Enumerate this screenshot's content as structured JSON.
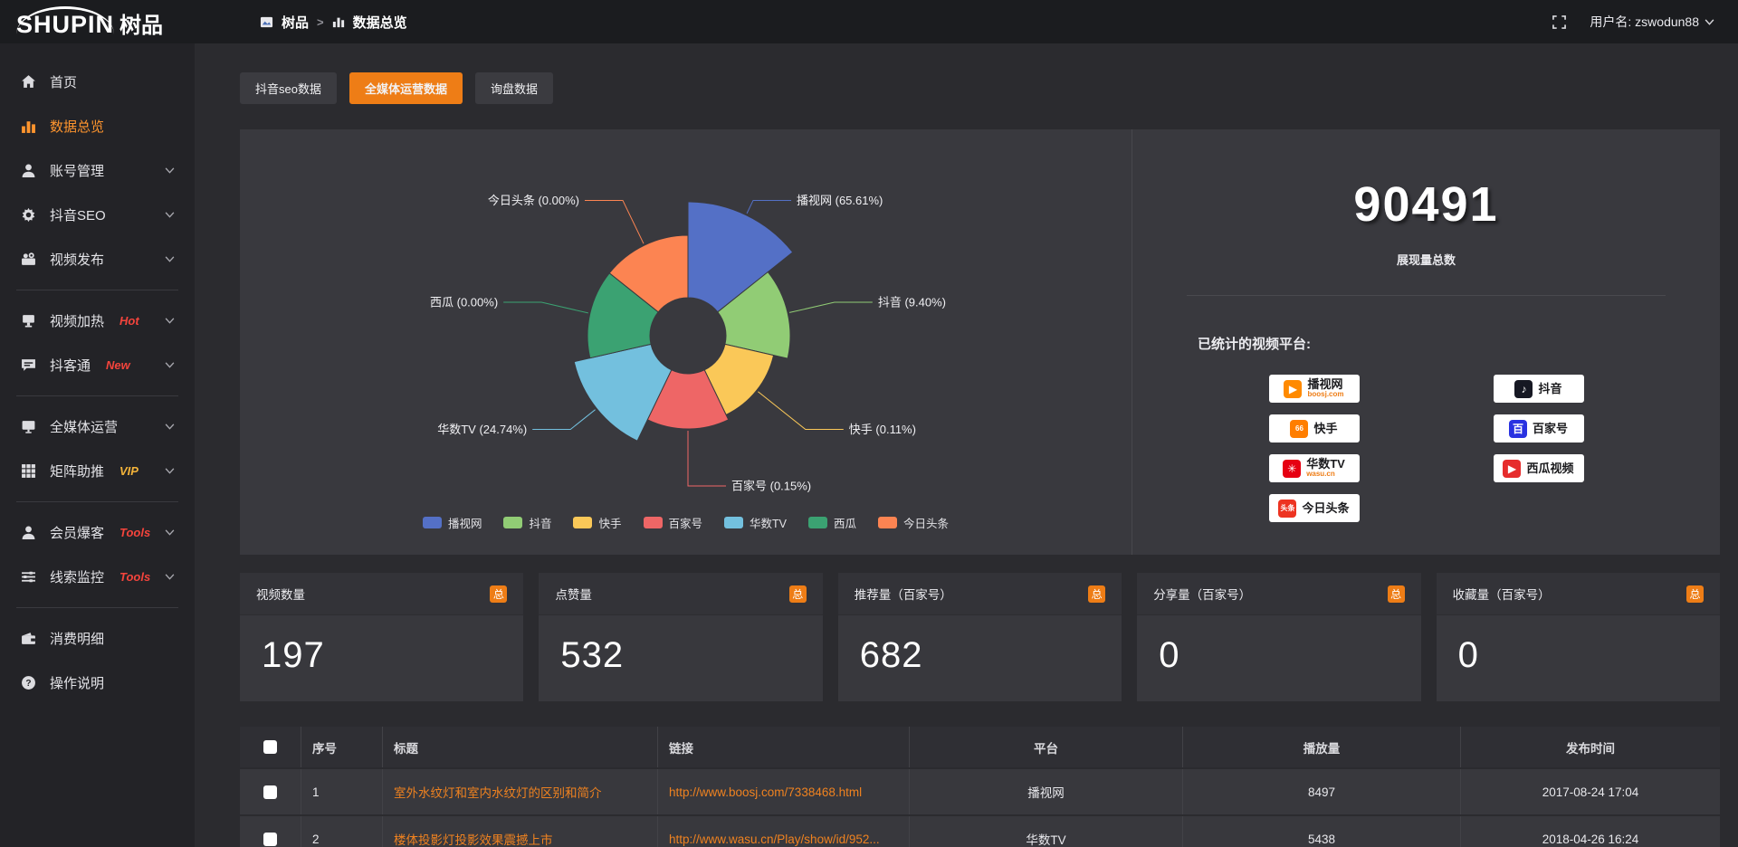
{
  "header": {
    "logo_en": "SHUPIN",
    "logo_cn": "树品",
    "breadcrumb": {
      "root": "树品",
      "separator": ">",
      "current": "数据总览"
    },
    "username": "用户名: zswodun88"
  },
  "sidebar": {
    "items": [
      {
        "label": "首页",
        "icon": "home-icon",
        "active": false,
        "badge": "",
        "chevron": false
      },
      {
        "label": "数据总览",
        "icon": "bar-chart-icon",
        "active": true,
        "badge": "",
        "chevron": false
      },
      {
        "label": "账号管理",
        "icon": "user-icon",
        "active": false,
        "badge": "",
        "chevron": true
      },
      {
        "label": "抖音SEO",
        "icon": "gear-icon",
        "active": false,
        "badge": "",
        "chevron": true
      },
      {
        "label": "视频发布",
        "icon": "video-camera-icon",
        "active": false,
        "badge": "",
        "chevron": true
      },
      {
        "label": "视频加热",
        "icon": "monitor-stand-icon",
        "active": false,
        "badge": "Hot",
        "chevron": true
      },
      {
        "label": "抖客通",
        "icon": "chat-bubble-icon",
        "active": false,
        "badge": "New",
        "chevron": true
      },
      {
        "label": "全媒体运营",
        "icon": "monitor-icon",
        "active": false,
        "badge": "",
        "chevron": true
      },
      {
        "label": "矩阵助推",
        "icon": "grid-icon",
        "active": false,
        "badge": "VIP",
        "chevron": true
      },
      {
        "label": "会员爆客",
        "icon": "person-icon",
        "active": false,
        "badge": "Tools",
        "chevron": true
      },
      {
        "label": "线索监控",
        "icon": "sliders-icon",
        "active": false,
        "badge": "Tools",
        "chevron": true
      },
      {
        "label": "消费明细",
        "icon": "wallet-icon",
        "active": false,
        "badge": "",
        "chevron": false
      },
      {
        "label": "操作说明",
        "icon": "question-circle-icon",
        "active": false,
        "badge": "",
        "chevron": false
      }
    ]
  },
  "tabs": [
    {
      "label": "抖音seo数据",
      "active": false
    },
    {
      "label": "全媒体运营数据",
      "active": true
    },
    {
      "label": "询盘数据",
      "active": false
    }
  ],
  "chart_data": {
    "type": "pie",
    "subtype": "nightingale-rose",
    "title": "",
    "legend_position": "bottom",
    "inner_radius": 42,
    "slices": [
      {
        "name": "播视网",
        "pct": 65.61,
        "color": "#5470c6",
        "outer_r": 148
      },
      {
        "name": "抖音",
        "pct": 9.4,
        "color": "#91cc75",
        "outer_r": 113
      },
      {
        "name": "快手",
        "pct": 0.11,
        "color": "#fac858",
        "outer_r": 97
      },
      {
        "name": "百家号",
        "pct": 0.15,
        "color": "#ee6666",
        "outer_r": 103
      },
      {
        "name": "华数TV",
        "pct": 24.74,
        "color": "#73c0de",
        "outer_r": 129
      },
      {
        "name": "西瓜",
        "pct": 0.0,
        "color": "#3ba272",
        "outer_r": 111
      },
      {
        "name": "今日头条",
        "pct": 0.0,
        "color": "#fc8452",
        "outer_r": 111
      }
    ]
  },
  "summary": {
    "total_value": "90491",
    "total_label": "展现量总数",
    "platforms_title": "已统计的视频平台:",
    "platforms": [
      {
        "name": "播视网",
        "sub": "boosj.com",
        "icon": "play-icon",
        "glyph": "▶",
        "icon_color": "#ff8a00"
      },
      {
        "name": "抖音",
        "sub": "",
        "icon": "music-note-icon",
        "glyph": "♪",
        "icon_color": "#161823"
      },
      {
        "name": "快手",
        "sub": "",
        "icon": "kuaishou-icon",
        "glyph": "66",
        "icon_color": "#ff7e00"
      },
      {
        "name": "百家号",
        "sub": "",
        "icon": "baijiahao-icon",
        "glyph": "百",
        "icon_color": "#2932e1"
      },
      {
        "name": "华数TV",
        "sub": "wasu.cn",
        "icon": "starburst-icon",
        "glyph": "✳",
        "icon_color": "#e60012"
      },
      {
        "name": "西瓜视频",
        "sub": "",
        "icon": "play-circle-icon",
        "glyph": "▶",
        "icon_color": "#e62c2c"
      },
      {
        "name": "今日头条",
        "sub": "",
        "icon": "toutiao-icon",
        "glyph": "头条",
        "icon_color": "#ed3321"
      }
    ]
  },
  "stat_cards": [
    {
      "label": "视频数量",
      "badge": "总",
      "value": "197"
    },
    {
      "label": "点赞量",
      "badge": "总",
      "value": "532"
    },
    {
      "label": "推荐量（百家号）",
      "badge": "总",
      "value": "682"
    },
    {
      "label": "分享量（百家号）",
      "badge": "总",
      "value": "0"
    },
    {
      "label": "收藏量（百家号）",
      "badge": "总",
      "value": "0"
    }
  ],
  "table": {
    "headers": [
      "序号",
      "标题",
      "链接",
      "平台",
      "播放量",
      "发布时间"
    ],
    "rows": [
      [
        "1",
        "室外水纹灯和室内水纹灯的区别和简介",
        "http://www.boosj.com/7338468.html",
        "播视网",
        "8497",
        "2017-08-24 17:04"
      ],
      [
        "2",
        "楼体投影灯投影效果震撼上市",
        "http://www.wasu.cn/Play/show/id/952...",
        "华数TV",
        "5438",
        "2018-04-26 16:24"
      ]
    ]
  }
}
